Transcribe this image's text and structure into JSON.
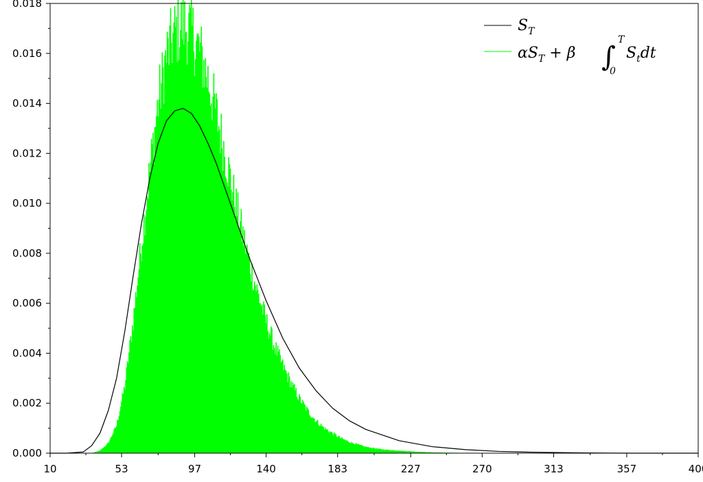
{
  "chart_data": {
    "type": "bar",
    "title": "",
    "xlabel": "",
    "ylabel": "",
    "xlim": [
      10,
      400
    ],
    "ylim": [
      0,
      0.018
    ],
    "x_ticks": [
      "10",
      "53",
      "97",
      "140",
      "183",
      "227",
      "270",
      "313",
      "357",
      "400"
    ],
    "y_ticks": [
      "0.000",
      "0.002",
      "0.004",
      "0.006",
      "0.008",
      "0.010",
      "0.012",
      "0.014",
      "0.016",
      "0.018"
    ],
    "grid": false,
    "legend_position": "top-right",
    "legend": [
      {
        "label": "S_T",
        "color": "#000000",
        "kind": "line"
      },
      {
        "label": "αS_T + β ∫_0^T S_t dt",
        "color": "#00ff00",
        "kind": "histogram"
      }
    ],
    "series": [
      {
        "name": "S_T",
        "type": "line",
        "color": "#000000",
        "x": [
          10,
          20,
          30,
          35,
          40,
          45,
          50,
          55,
          60,
          65,
          70,
          75,
          80,
          85,
          90,
          95,
          100,
          105,
          110,
          120,
          130,
          140,
          150,
          160,
          170,
          180,
          190,
          200,
          220,
          240,
          260,
          280,
          300,
          330,
          360,
          400
        ],
        "y": [
          0.0,
          0.0,
          5e-05,
          0.0003,
          0.0008,
          0.0017,
          0.003,
          0.0049,
          0.0071,
          0.0092,
          0.011,
          0.0124,
          0.0133,
          0.0137,
          0.0138,
          0.0136,
          0.0131,
          0.0124,
          0.0116,
          0.0097,
          0.0078,
          0.0061,
          0.0046,
          0.0034,
          0.0025,
          0.0018,
          0.0013,
          0.00095,
          0.0005,
          0.00026,
          0.00014,
          7e-05,
          4e-05,
          1e-05,
          0.0,
          0.0
        ]
      },
      {
        "name": "αS_T + β ∫_0^T S_t dt",
        "type": "histogram",
        "color": "#00ff00",
        "x": [
          35,
          40,
          45,
          50,
          55,
          60,
          65,
          70,
          75,
          80,
          85,
          90,
          95,
          100,
          105,
          110,
          115,
          120,
          125,
          130,
          135,
          140,
          145,
          150,
          155,
          160,
          165,
          170,
          175,
          180,
          185,
          190,
          200,
          210,
          220,
          230,
          240,
          260,
          280,
          300,
          320
        ],
        "y": [
          0.0,
          0.0001,
          0.0004,
          0.0011,
          0.0027,
          0.0053,
          0.0084,
          0.0113,
          0.014,
          0.0159,
          0.0168,
          0.0172,
          0.0169,
          0.0161,
          0.015,
          0.0136,
          0.0121,
          0.0105,
          0.009,
          0.0076,
          0.0064,
          0.0053,
          0.0043,
          0.0035,
          0.0028,
          0.0022,
          0.0017,
          0.0013,
          0.001,
          0.0008,
          0.0006,
          0.00045,
          0.00025,
          0.00015,
          0.0001,
          6e-05,
          3e-05,
          1e-05,
          0.0,
          0.0,
          0.0
        ]
      }
    ]
  }
}
